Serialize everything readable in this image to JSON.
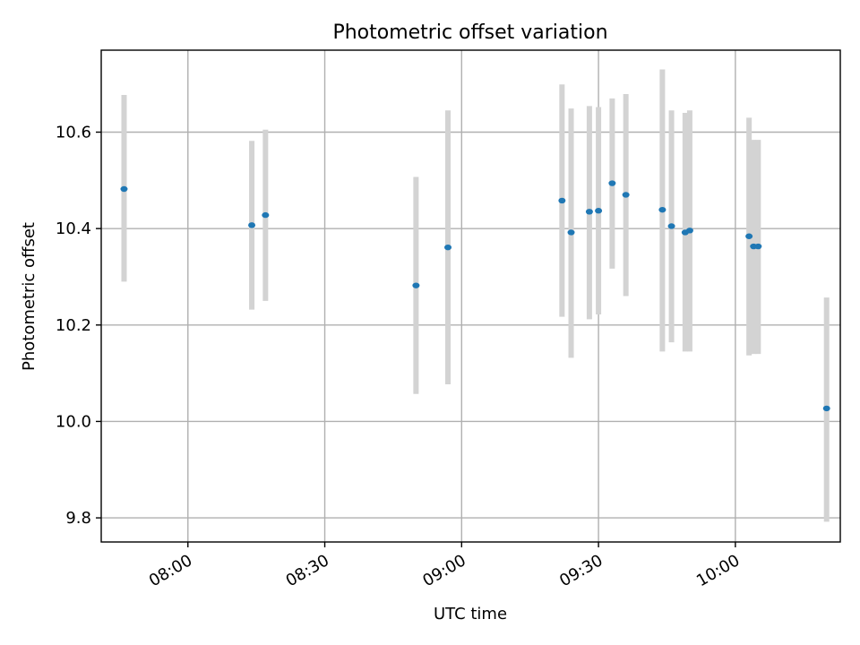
{
  "chart_data": {
    "type": "scatter",
    "title": "Photometric offset variation",
    "xlabel": "UTC time",
    "ylabel": "Photometric offset",
    "xlim": [
      "07:41",
      "10:23"
    ],
    "ylim": [
      9.75,
      10.77
    ],
    "x_ticks": [
      "08:00",
      "08:30",
      "09:00",
      "09:30",
      "10:00"
    ],
    "y_ticks": [
      9.8,
      10.0,
      10.2,
      10.4,
      10.6
    ],
    "y_tick_labels": [
      "9.8",
      "10.0",
      "10.2",
      "10.4",
      "10.6"
    ],
    "grid": true,
    "points": [
      {
        "x": "07:46",
        "y": 10.482,
        "ylo": 10.29,
        "yhi": 10.677
      },
      {
        "x": "08:14",
        "y": 10.407,
        "ylo": 10.232,
        "yhi": 10.582
      },
      {
        "x": "08:17",
        "y": 10.428,
        "ylo": 10.25,
        "yhi": 10.605
      },
      {
        "x": "08:50",
        "y": 10.282,
        "ylo": 10.057,
        "yhi": 10.507
      },
      {
        "x": "08:57",
        "y": 10.361,
        "ylo": 10.077,
        "yhi": 10.645
      },
      {
        "x": "09:22",
        "y": 10.458,
        "ylo": 10.217,
        "yhi": 10.699
      },
      {
        "x": "09:24",
        "y": 10.392,
        "ylo": 10.132,
        "yhi": 10.649
      },
      {
        "x": "09:28",
        "y": 10.435,
        "ylo": 10.212,
        "yhi": 10.654
      },
      {
        "x": "09:30",
        "y": 10.437,
        "ylo": 10.222,
        "yhi": 10.652
      },
      {
        "x": "09:33",
        "y": 10.494,
        "ylo": 10.317,
        "yhi": 10.67
      },
      {
        "x": "09:36",
        "y": 10.47,
        "ylo": 10.26,
        "yhi": 10.679
      },
      {
        "x": "09:44",
        "y": 10.439,
        "ylo": 10.145,
        "yhi": 10.73
      },
      {
        "x": "09:46",
        "y": 10.405,
        "ylo": 10.164,
        "yhi": 10.645
      },
      {
        "x": "09:49",
        "y": 10.392,
        "ylo": 10.145,
        "yhi": 10.64
      },
      {
        "x": "09:50",
        "y": 10.396,
        "ylo": 10.145,
        "yhi": 10.645
      },
      {
        "x": "10:03",
        "y": 10.384,
        "ylo": 10.137,
        "yhi": 10.63
      },
      {
        "x": "10:04",
        "y": 10.363,
        "ylo": 10.14,
        "yhi": 10.584
      },
      {
        "x": "10:05",
        "y": 10.363,
        "ylo": 10.14,
        "yhi": 10.584
      },
      {
        "x": "10:20",
        "y": 10.027,
        "ylo": 9.792,
        "yhi": 10.257
      }
    ],
    "colors": {
      "point": "#1f77b4",
      "errorbar": "#d3d3d3",
      "grid": "#b0b0b0"
    }
  }
}
